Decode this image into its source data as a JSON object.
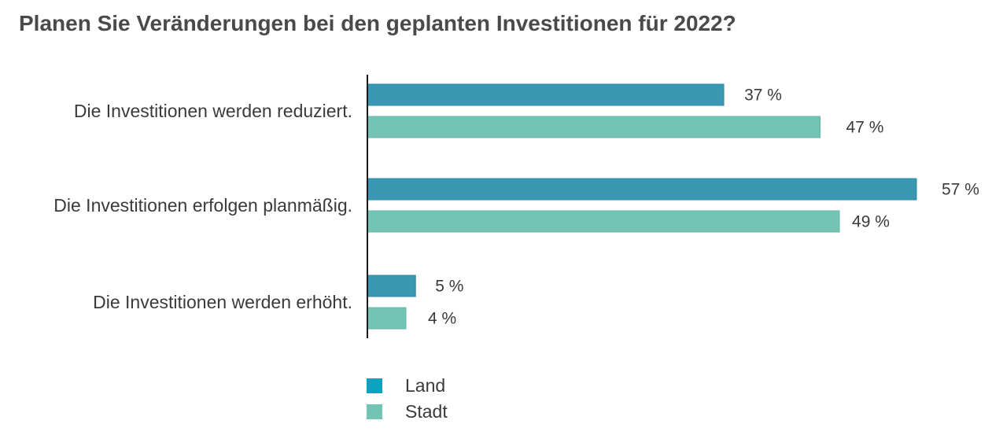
{
  "title": "Planen Sie Veränderungen bei den geplanten Investitionen für 2022?",
  "legend": [
    {
      "label": "Land",
      "color": "#0ca3c0"
    },
    {
      "label": "Stadt",
      "color": "#73c4b4"
    }
  ],
  "chart_data": {
    "type": "bar",
    "orientation": "horizontal",
    "title": "Planen Sie Veränderungen bei den geplanten Investitionen für 2022?",
    "categories": [
      "Die Investitionen werden reduziert.",
      "Die Investitionen erfolgen planmäßig.",
      "Die Investitionen werden erhöht."
    ],
    "series": [
      {
        "name": "Land",
        "values": [
          37,
          57,
          5
        ],
        "labels": [
          "37  %",
          "57 %",
          "5 %"
        ],
        "color": "#3a98b2"
      },
      {
        "name": "Stadt",
        "values": [
          47,
          49,
          4
        ],
        "labels": [
          "47 %",
          "49  %",
          "4 %"
        ],
        "color": "#73c4b4"
      }
    ],
    "unit": "%",
    "xlim": [
      0,
      57
    ],
    "legend_position": "bottom",
    "grid": false
  }
}
